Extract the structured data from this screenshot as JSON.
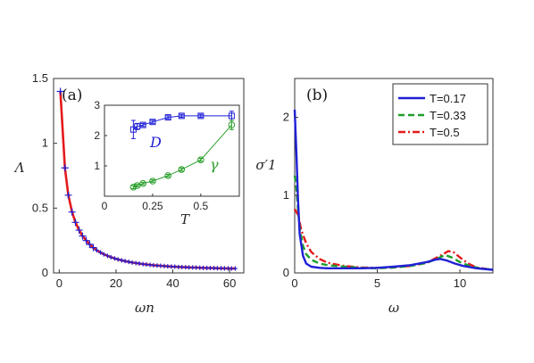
{
  "chart_data": [
    {
      "panel": "(a)",
      "type": "line",
      "xlabel": "ωn",
      "ylabel": "Λ",
      "xlim": [
        -2,
        65
      ],
      "ylim": [
        0,
        1.5
      ],
      "xticks": [
        "0",
        "20",
        "40",
        "60"
      ],
      "yticks": [
        "0",
        "0.5",
        "1",
        "1.5"
      ],
      "grid": false,
      "colors": {
        "curve": "#e41a1c",
        "markers": "#1f1fd6"
      },
      "series": [
        {
          "style": "solid-with-errorbar-markers",
          "x": [
            0.4,
            2.0,
            3.2,
            4.5,
            5.7,
            7.0,
            8.2,
            9.5,
            10.7,
            12.0,
            13.2,
            14.5,
            15.7,
            17.0,
            18.2,
            19.5,
            20.7,
            22.0,
            23.2,
            24.5,
            25.7,
            27.0,
            28.2,
            29.5,
            30.7,
            32.0,
            33.2,
            34.5,
            35.7,
            37.0,
            38.2,
            39.5,
            40.7,
            42.0,
            43.2,
            44.5,
            45.7,
            47.0,
            48.2,
            49.5,
            50.7,
            52.0,
            53.2,
            54.5,
            55.7,
            57.0,
            58.2,
            59.5,
            60.7,
            62.0
          ],
          "y": [
            1.4,
            0.81,
            0.6,
            0.47,
            0.39,
            0.33,
            0.285,
            0.25,
            0.22,
            0.195,
            0.175,
            0.158,
            0.144,
            0.132,
            0.121,
            0.112,
            0.104,
            0.097,
            0.091,
            0.085,
            0.08,
            0.076,
            0.072,
            0.068,
            0.065,
            0.062,
            0.059,
            0.057,
            0.055,
            0.053,
            0.051,
            0.049,
            0.048,
            0.046,
            0.045,
            0.044,
            0.043,
            0.042,
            0.041,
            0.04,
            0.039,
            0.038,
            0.038,
            0.037,
            0.036,
            0.036,
            0.035,
            0.035,
            0.034,
            0.034
          ]
        }
      ],
      "inset": {
        "xlabel": "T",
        "xlim": [
          0,
          0.7
        ],
        "ylim": [
          0,
          3
        ],
        "xticks": [
          "0",
          "0.25",
          "0.5"
        ],
        "yticks": [
          "1",
          "2",
          "3"
        ],
        "series": [
          {
            "name": "D",
            "color": "#1f1fd6",
            "marker": "square",
            "x": [
              0.15,
              0.17,
              0.2,
              0.25,
              0.33,
              0.4,
              0.5,
              0.66
            ],
            "y": [
              2.2,
              2.3,
              2.35,
              2.45,
              2.6,
              2.65,
              2.65,
              2.65
            ],
            "err": [
              0.3,
              0.1,
              0.05,
              0.05,
              0.05,
              0.05,
              0.05,
              0.15
            ]
          },
          {
            "name": "γ",
            "color": "#2ca02c",
            "marker": "circle",
            "x": [
              0.15,
              0.17,
              0.2,
              0.25,
              0.33,
              0.4,
              0.5,
              0.66
            ],
            "y": [
              0.3,
              0.35,
              0.42,
              0.5,
              0.68,
              0.88,
              1.2,
              2.35
            ],
            "err": [
              0.05,
              0.04,
              0.04,
              0.04,
              0.04,
              0.05,
              0.05,
              0.15
            ]
          }
        ]
      }
    },
    {
      "panel": "(b)",
      "type": "line",
      "xlabel": "ω",
      "ylabel": "σ′1",
      "xlim": [
        0,
        12
      ],
      "ylim": [
        0,
        2.5
      ],
      "xticks": [
        "0",
        "5",
        "10"
      ],
      "yticks": [
        "0",
        "1",
        "2"
      ],
      "grid": false,
      "legend_position": "top-right",
      "series": [
        {
          "name": "T=0.17",
          "color": "#1f1fd6",
          "style": "solid",
          "x": [
            0,
            0.1,
            0.2,
            0.3,
            0.5,
            0.7,
            1,
            1.5,
            2,
            3,
            4,
            5,
            6,
            7,
            8,
            8.5,
            8.8,
            9.2,
            9.7,
            10.2,
            11,
            12
          ],
          "y": [
            2.1,
            1.55,
            0.95,
            0.5,
            0.22,
            0.12,
            0.08,
            0.065,
            0.06,
            0.06,
            0.06,
            0.065,
            0.08,
            0.1,
            0.14,
            0.17,
            0.18,
            0.16,
            0.12,
            0.09,
            0.06,
            0.04
          ]
        },
        {
          "name": "T=0.33",
          "color": "#1e9e2a",
          "style": "dashed",
          "x": [
            0,
            0.1,
            0.2,
            0.3,
            0.5,
            0.7,
            1,
            1.5,
            2,
            3,
            4,
            5,
            6,
            7,
            8,
            8.7,
            9.1,
            9.5,
            10,
            10.6,
            11.2,
            12
          ],
          "y": [
            1.25,
            1.1,
            0.82,
            0.58,
            0.35,
            0.24,
            0.17,
            0.12,
            0.1,
            0.08,
            0.065,
            0.06,
            0.07,
            0.09,
            0.13,
            0.19,
            0.23,
            0.2,
            0.14,
            0.09,
            0.06,
            0.04
          ]
        },
        {
          "name": "T=0.5",
          "color": "#e41a1c",
          "style": "dashdot",
          "x": [
            0,
            0.2,
            0.4,
            0.7,
            1,
            1.5,
            2,
            3,
            4,
            5,
            6,
            7,
            8,
            8.8,
            9.3,
            9.6,
            10,
            10.5,
            11,
            12
          ],
          "y": [
            0.82,
            0.75,
            0.55,
            0.38,
            0.27,
            0.18,
            0.13,
            0.09,
            0.07,
            0.065,
            0.07,
            0.09,
            0.13,
            0.22,
            0.28,
            0.27,
            0.2,
            0.12,
            0.07,
            0.04
          ]
        }
      ]
    }
  ]
}
